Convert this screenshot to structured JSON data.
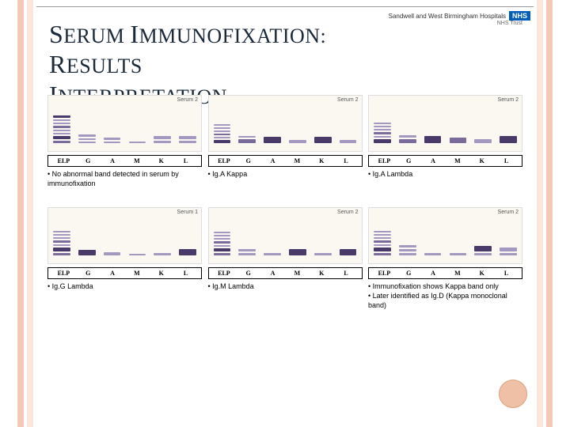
{
  "title_line1_parts": [
    "S",
    "ERUM ",
    "I",
    "MMUNOFIXATION",
    ": ",
    "R",
    "ESULTS"
  ],
  "title_line2_parts": [
    "I",
    "NTERPRETATION"
  ],
  "logo_text": "Sandwell and West Birmingham Hospitals",
  "logo_badge": "NHS",
  "logo_sub": "NHS Trust",
  "lane_header": [
    "ELP",
    "G",
    "A",
    "M",
    "K",
    "L"
  ],
  "panels": [
    {
      "top_label": "Serum 2",
      "caption": "No abnormal band detected in serum by immunofixation",
      "bands": [
        [
          {
            "h": 3,
            "t": "band"
          },
          {
            "h": 2,
            "t": "light"
          },
          {
            "h": 2,
            "t": "light"
          },
          {
            "h": 3,
            "t": "mid"
          },
          {
            "h": 2,
            "t": "light"
          },
          {
            "h": 2,
            "t": "light"
          },
          {
            "h": 4,
            "t": "band"
          },
          {
            "h": 3,
            "t": "mid"
          }
        ],
        [
          {
            "h": 3,
            "t": "light"
          },
          {
            "h": 2,
            "t": "light"
          },
          {
            "h": 2,
            "t": "light"
          }
        ],
        [
          {
            "h": 3,
            "t": "light"
          },
          {
            "h": 2,
            "t": "light"
          }
        ],
        [
          {
            "h": 2,
            "t": "light"
          }
        ],
        [
          {
            "h": 4,
            "t": "light"
          },
          {
            "h": 3,
            "t": "light"
          }
        ],
        [
          {
            "h": 4,
            "t": "light"
          },
          {
            "h": 3,
            "t": "light"
          }
        ]
      ]
    },
    {
      "top_label": "Serum 2",
      "caption": "Ig.A Kappa",
      "bands": [
        [
          {
            "h": 2,
            "t": "light"
          },
          {
            "h": 2,
            "t": "light"
          },
          {
            "h": 2,
            "t": "light"
          },
          {
            "h": 2,
            "t": "mid"
          },
          {
            "h": 2,
            "t": "light"
          },
          {
            "h": 4,
            "t": "band"
          }
        ],
        [
          {
            "h": 2,
            "t": "light"
          },
          {
            "h": 5,
            "t": "mid"
          }
        ],
        [
          {
            "h": 8,
            "t": "band"
          }
        ],
        [
          {
            "h": 4,
            "t": "light"
          }
        ],
        [
          {
            "h": 8,
            "t": "band"
          }
        ],
        [
          {
            "h": 4,
            "t": "light"
          }
        ]
      ]
    },
    {
      "top_label": "Serum 2",
      "caption": "Ig.A Lambda",
      "bands": [
        [
          {
            "h": 2,
            "t": "light"
          },
          {
            "h": 2,
            "t": "light"
          },
          {
            "h": 2,
            "t": "light"
          },
          {
            "h": 3,
            "t": "mid"
          },
          {
            "h": 2,
            "t": "light"
          },
          {
            "h": 5,
            "t": "band"
          }
        ],
        [
          {
            "h": 3,
            "t": "light"
          },
          {
            "h": 5,
            "t": "mid"
          }
        ],
        [
          {
            "h": 9,
            "t": "band"
          }
        ],
        [
          {
            "h": 7,
            "t": "mid"
          }
        ],
        [
          {
            "h": 5,
            "t": "light"
          }
        ],
        [
          {
            "h": 9,
            "t": "band"
          }
        ]
      ]
    },
    {
      "top_label": "Serum 1",
      "caption": "Ig.G Lambda",
      "bands": [
        [
          {
            "h": 2,
            "t": "light"
          },
          {
            "h": 2,
            "t": "light"
          },
          {
            "h": 2,
            "t": "light"
          },
          {
            "h": 3,
            "t": "mid"
          },
          {
            "h": 2,
            "t": "light"
          },
          {
            "h": 5,
            "t": "band"
          },
          {
            "h": 3,
            "t": "mid"
          }
        ],
        [
          {
            "h": 7,
            "t": "band"
          }
        ],
        [
          {
            "h": 4,
            "t": "light"
          }
        ],
        [
          {
            "h": 2,
            "t": "light"
          }
        ],
        [
          {
            "h": 3,
            "t": "light"
          }
        ],
        [
          {
            "h": 8,
            "t": "band"
          }
        ]
      ]
    },
    {
      "top_label": "Serum 2",
      "caption": "Ig.M Lambda",
      "bands": [
        [
          {
            "h": 2,
            "t": "light"
          },
          {
            "h": 2,
            "t": "light"
          },
          {
            "h": 2,
            "t": "light"
          },
          {
            "h": 3,
            "t": "mid"
          },
          {
            "h": 2,
            "t": "light"
          },
          {
            "h": 4,
            "t": "band"
          },
          {
            "h": 3,
            "t": "mid"
          }
        ],
        [
          {
            "h": 3,
            "t": "light"
          },
          {
            "h": 3,
            "t": "light"
          }
        ],
        [
          {
            "h": 3,
            "t": "light"
          }
        ],
        [
          {
            "h": 8,
            "t": "band"
          }
        ],
        [
          {
            "h": 3,
            "t": "light"
          }
        ],
        [
          {
            "h": 8,
            "t": "band"
          }
        ]
      ]
    },
    {
      "top_label": "Serum 2",
      "caption": "Immunofixation shows Kappa band only",
      "caption2": "Later identified as Ig.D (Kappa monoclonal band)",
      "bands": [
        [
          {
            "h": 2,
            "t": "light"
          },
          {
            "h": 2,
            "t": "light"
          },
          {
            "h": 2,
            "t": "light"
          },
          {
            "h": 3,
            "t": "mid"
          },
          {
            "h": 2,
            "t": "light"
          },
          {
            "h": 5,
            "t": "band"
          },
          {
            "h": 3,
            "t": "mid"
          }
        ],
        [
          {
            "h": 3,
            "t": "light"
          },
          {
            "h": 3,
            "t": "light"
          },
          {
            "h": 3,
            "t": "light"
          }
        ],
        [
          {
            "h": 3,
            "t": "light"
          }
        ],
        [
          {
            "h": 3,
            "t": "light"
          }
        ],
        [
          {
            "h": 7,
            "t": "band"
          },
          {
            "h": 3,
            "t": "light"
          }
        ],
        [
          {
            "h": 5,
            "t": "light"
          },
          {
            "h": 3,
            "t": "light"
          }
        ]
      ]
    }
  ],
  "colors": {
    "bar_outer": "#f4c9b8",
    "bar_inner": "#fbe6dc",
    "title": "#1a2a3a",
    "band_dark": "#4a3a6a",
    "band_mid": "#7a6b9a",
    "band_light": "#a598c0",
    "circle": "#efc0a5"
  }
}
